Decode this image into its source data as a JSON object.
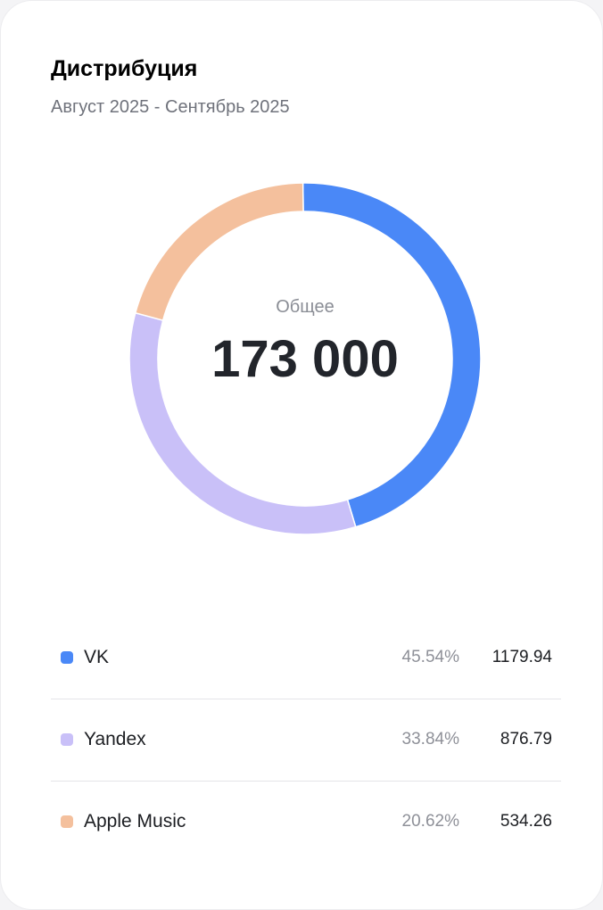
{
  "header": {
    "title": "Дистрибуция",
    "subtitle": "Август 2025 - Сентябрь 2025"
  },
  "chart_data": {
    "type": "pie",
    "variant": "donut",
    "center_label": "Общее",
    "center_value": "173 000",
    "categories": [
      "VK",
      "Yandex",
      "Apple Music"
    ],
    "values": [
      45.54,
      33.84,
      20.62
    ],
    "colors": [
      "#4a88f7",
      "#c9c0f8",
      "#f4c09d"
    ],
    "legend": [
      {
        "label": "VK",
        "percent": "45.54%",
        "value": "1179.94",
        "color": "#4a88f7"
      },
      {
        "label": "Yandex",
        "percent": "33.84%",
        "value": "876.79",
        "color": "#c9c0f8"
      },
      {
        "label": "Apple Music",
        "percent": "20.62%",
        "value": "534.26",
        "color": "#f4c09d"
      }
    ],
    "legend_placement": "bottom"
  }
}
